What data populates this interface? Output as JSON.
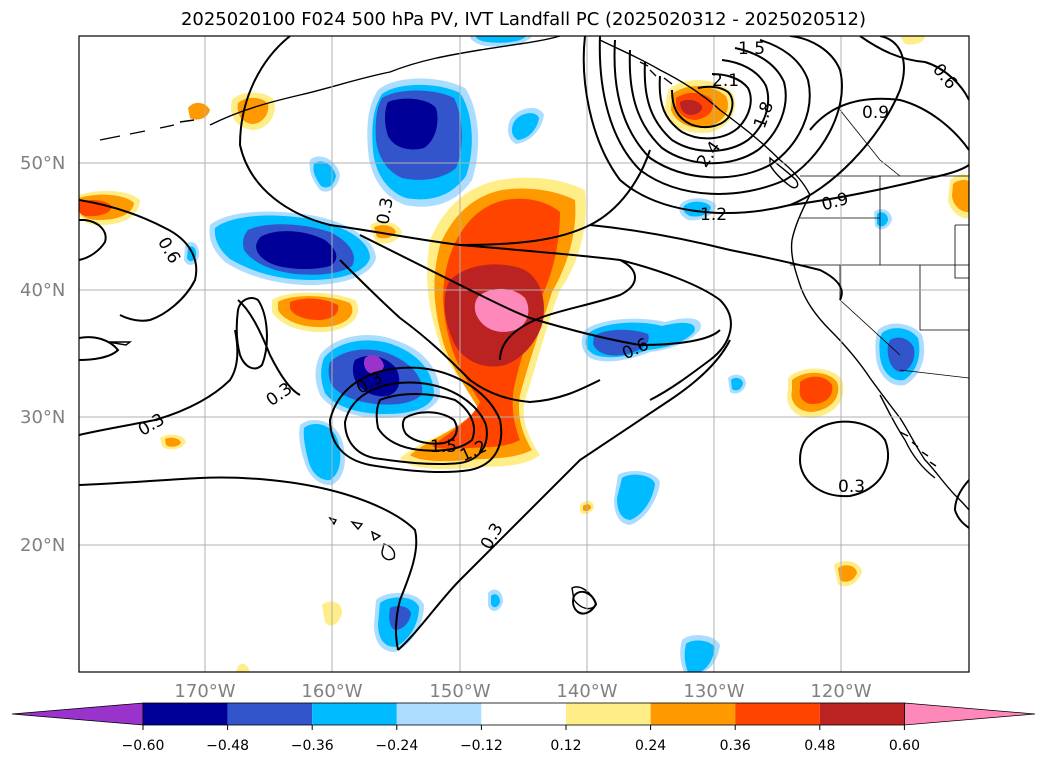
{
  "title": "2025020100 F024 500 hPa PV, IVT Landfall PC (2025020312 - 2025020512)",
  "colors": {
    "purple": "#9933cc",
    "navy": "#000099",
    "royal": "#3355cc",
    "sky": "#00bbff",
    "pale_blue": "#aaddff",
    "white": "#ffffff",
    "pale_yellow": "#ffee88",
    "orange": "#ff9900",
    "red_orange": "#ff4400",
    "firebrick": "#bb2222",
    "pink": "#ff88bb"
  },
  "lat_labels": [
    "50°N",
    "40°N",
    "30°N",
    "20°N"
  ],
  "lon_labels": [
    "170°W",
    "160°W",
    "150°W",
    "140°W",
    "130°W",
    "120°W"
  ],
  "colorbar": {
    "ticks": [
      "−0.60",
      "−0.48",
      "−0.36",
      "−0.24",
      "−0.12",
      "0.12",
      "0.24",
      "0.36",
      "0.48",
      "0.60"
    ]
  },
  "contour_labels": [
    "1.5",
    "2.1",
    "1.8",
    "0.9",
    "0.6",
    "2.4",
    "1.2",
    "0.9",
    "0.3",
    "0.6",
    "0.6",
    "0.3",
    "0.3",
    "0.3",
    "1.5",
    "1.2",
    "0.3",
    "0.3"
  ]
}
